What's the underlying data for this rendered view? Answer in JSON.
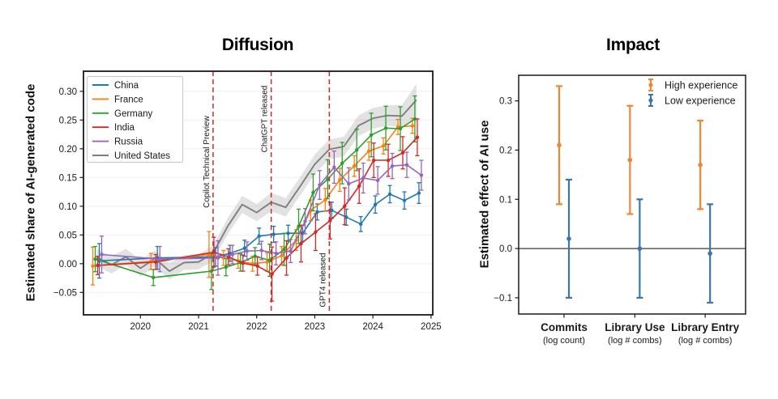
{
  "figure": {
    "background": "#ffffff",
    "accent_red": "#d62728"
  },
  "chart_data": [
    {
      "type": "line",
      "title": "Diffusion",
      "ylabel": "Estimated share of AI-generated code",
      "xlabel": "",
      "xlim": [
        2019.02,
        2025.03
      ],
      "ylim": [
        -0.089,
        0.335
      ],
      "grid": true,
      "legend_position": "upper-left",
      "xticks": [
        2020,
        2021,
        2022,
        2023,
        2024,
        2025
      ],
      "xticklabels": [
        "2020",
        "2021",
        "2022",
        "2023",
        "2024",
        "2025"
      ],
      "yticks": [
        0.3,
        0.25,
        0.2,
        0.15,
        0.1,
        0.05,
        0.0,
        -0.05
      ],
      "yticklabels": [
        "0.30",
        "0.25",
        "0.20",
        "0.15",
        "0.10",
        "0.05",
        "0.00",
        "−0.05"
      ],
      "events": [
        {
          "x": 2021.25,
          "label": "Copilot Technical Preview"
        },
        {
          "x": 2022.25,
          "label": "ChatGPT released"
        },
        {
          "x": 2023.25,
          "label": "GPT4 released"
        }
      ],
      "event_color": "#d62728",
      "x_quarterly": [
        2019.25,
        2020.25,
        2021.25,
        2021.5,
        2021.75,
        2022.0,
        2022.25,
        2022.5,
        2022.75,
        2023.0,
        2023.25,
        2023.5,
        2023.75,
        2024.0,
        2024.25,
        2024.5,
        2024.75
      ],
      "series": [
        {
          "name": "China",
          "color": "#1f77b4",
          "y": [
            0.005,
            0.01,
            0.012,
            0.018,
            0.027,
            0.048,
            0.051,
            0.053,
            0.053,
            0.09,
            0.093,
            0.081,
            0.069,
            0.103,
            0.121,
            0.11,
            0.123
          ],
          "err": [
            0.03,
            0.02,
            0.016,
            0.014,
            0.014,
            0.014,
            0.014,
            0.014,
            0.014,
            0.014,
            0.014,
            0.014,
            0.013,
            0.015,
            0.015,
            0.015,
            0.018
          ]
        },
        {
          "name": "France",
          "color": "#ff7f0e",
          "y": [
            -0.004,
            0.004,
            0.016,
            0.01,
            0.005,
            0.0,
            0.003,
            0.014,
            0.041,
            0.093,
            0.111,
            0.146,
            0.17,
            0.196,
            0.205,
            0.238,
            0.24
          ],
          "err": [
            0.033,
            0.014,
            0.04,
            0.013,
            0.013,
            0.013,
            0.016,
            0.016,
            0.018,
            0.018,
            0.02,
            0.02,
            0.018,
            0.016,
            0.014,
            0.013,
            0.013
          ]
        },
        {
          "name": "Germany",
          "color": "#2ca02c",
          "y": [
            0.008,
            -0.024,
            -0.013,
            -0.006,
            0.002,
            0.013,
            0.006,
            0.025,
            0.065,
            0.124,
            0.147,
            0.175,
            0.198,
            0.224,
            0.236,
            0.235,
            0.252
          ],
          "err": [
            0.022,
            0.014,
            0.032,
            0.015,
            0.015,
            0.015,
            0.028,
            0.028,
            0.03,
            0.032,
            0.034,
            0.036,
            0.036,
            0.038,
            0.038,
            0.038,
            0.04
          ]
        },
        {
          "name": "India",
          "color": "#d62728",
          "y": [
            -0.003,
            0.003,
            0.02,
            0.012,
            0.001,
            -0.004,
            -0.018,
            0.01,
            0.035,
            0.055,
            0.075,
            0.1,
            0.135,
            0.18,
            0.18,
            0.193,
            0.22
          ],
          "err": [
            0.016,
            0.013,
            0.026,
            0.014,
            0.014,
            0.016,
            0.047,
            0.03,
            0.032,
            0.032,
            0.032,
            0.032,
            0.03,
            0.03,
            0.028,
            0.028,
            0.032
          ]
        },
        {
          "name": "Russia",
          "color": "#9467bd",
          "y": [
            0.016,
            0.008,
            0.01,
            0.016,
            0.022,
            0.023,
            0.018,
            0.022,
            0.074,
            0.137,
            0.168,
            0.139,
            0.149,
            0.145,
            0.17,
            0.172,
            0.154
          ],
          "err": [
            0.032,
            0.022,
            0.03,
            0.016,
            0.016,
            0.016,
            0.02,
            0.02,
            0.022,
            0.025,
            0.028,
            0.028,
            0.026,
            0.024,
            0.022,
            0.022,
            0.026
          ]
        },
        {
          "name": "United States",
          "color": "#7f7f7f",
          "band": true,
          "x": [
            2019.25,
            2019.5,
            2019.75,
            2020.0,
            2020.25,
            2020.5,
            2020.75,
            2021.0,
            2021.25,
            2021.5,
            2021.75,
            2022.0,
            2022.25,
            2022.5,
            2022.75,
            2023.0,
            2023.25,
            2023.5,
            2023.75,
            2024.0,
            2024.25,
            2024.5,
            2024.75
          ],
          "y": [
            0.011,
            -0.002,
            0.012,
            -0.008,
            0.009,
            -0.013,
            0.002,
            0.003,
            0.018,
            0.065,
            0.103,
            0.089,
            0.107,
            0.098,
            0.135,
            0.173,
            0.199,
            0.204,
            0.24,
            0.253,
            0.258,
            0.257,
            0.285
          ],
          "band_halfwidth": [
            0.015,
            0.015,
            0.014,
            0.014,
            0.014,
            0.014,
            0.013,
            0.013,
            0.013,
            0.014,
            0.015,
            0.015,
            0.016,
            0.016,
            0.016,
            0.017,
            0.017,
            0.017,
            0.018,
            0.018,
            0.018,
            0.019,
            0.028
          ]
        }
      ]
    },
    {
      "type": "errorbar",
      "title": "Impact",
      "ylabel": "Estimated effect of AI use",
      "categories": [
        "Commits",
        "Library Use",
        "Library Entry"
      ],
      "category_sublabels": [
        "(log count)",
        "(log # combs)",
        "(log # combs)"
      ],
      "ylim": [
        -0.133,
        0.352
      ],
      "yticks": [
        0.3,
        0.2,
        0.1,
        0.0,
        -0.1
      ],
      "yticklabels": [
        "0.3",
        "0.2",
        "0.1",
        "0.0",
        "−0.1"
      ],
      "zero_line": true,
      "legend_position": "upper-right",
      "series": [
        {
          "name": "High experience",
          "color": "#ef8636",
          "values": [
            0.21,
            0.18,
            0.17
          ],
          "ci_low": [
            0.09,
            0.07,
            0.08
          ],
          "ci_high": [
            0.33,
            0.29,
            0.26
          ]
        },
        {
          "name": "Low experience",
          "color": "#3a76af",
          "values": [
            0.02,
            0.0,
            -0.01
          ],
          "ci_low": [
            -0.1,
            -0.1,
            -0.11
          ],
          "ci_high": [
            0.14,
            0.1,
            0.09
          ]
        }
      ]
    }
  ]
}
